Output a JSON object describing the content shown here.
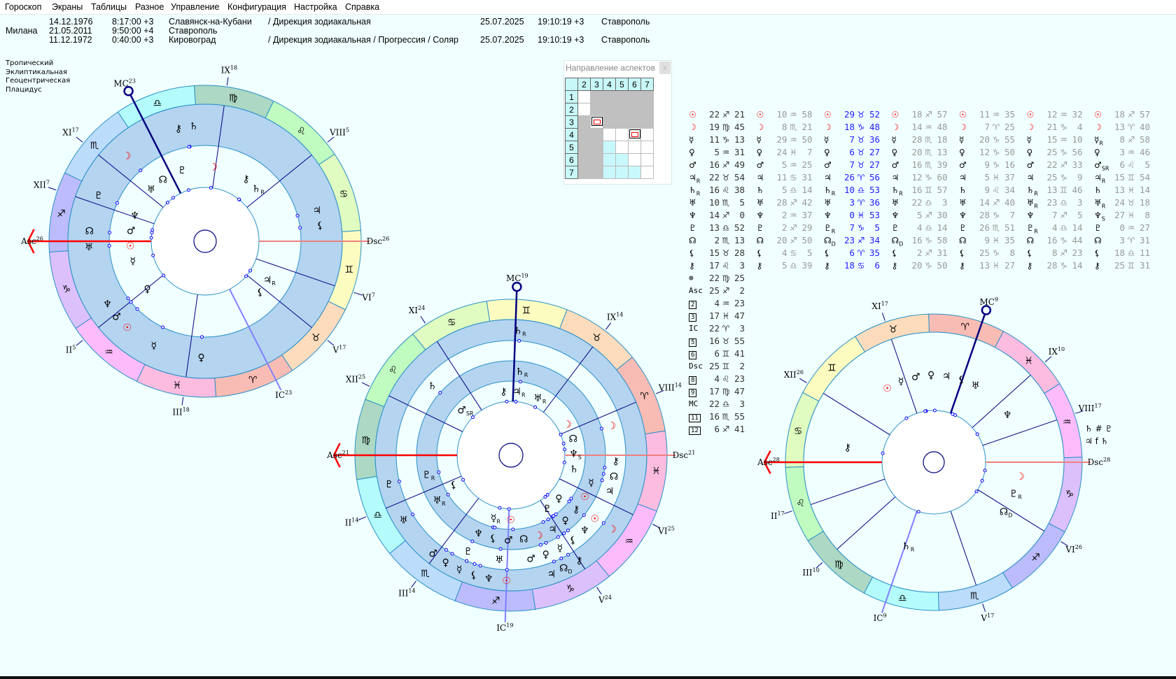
{
  "menu": [
    "Гороскоп",
    "Экраны",
    "Таблицы",
    "Разное",
    "Управление",
    "Конфигурация",
    "Настройка",
    "Справка"
  ],
  "header": {
    "name": "Милана",
    "rows": [
      {
        "date": "14.12.1976",
        "time": "8:17:00 +3",
        "place": "Славянск-на-Кубани",
        "method": "/ Дирекция зодиакальная",
        "ref_date": "25.07.2025",
        "ref_time": "19:10:19 +3",
        "ref_place": "Ставрополь"
      },
      {
        "date": "21.05.2011",
        "time": "9:50:00 +4",
        "place": "Ставрополь",
        "method": "",
        "ref_date": "",
        "ref_time": "",
        "ref_place": ""
      },
      {
        "date": "11.12.1972",
        "time": "0:40:00 +3",
        "place": "Кировоград",
        "method": "/ Дирекция зодиакальная / Прогрессия / Соляр",
        "ref_date": "25.07.2025",
        "ref_time": "19:10:19 +3",
        "ref_place": "Ставрополь"
      }
    ]
  },
  "settings": [
    "Тропический",
    "Эклиптикальная",
    "Геоцентрическая",
    "Плацидус"
  ],
  "aspect_panel": {
    "title": "Направление аспектов",
    "close": "x",
    "cols": [
      "2",
      "3",
      "4",
      "5",
      "6",
      "7"
    ],
    "rows": [
      "1",
      "2",
      "3",
      "4",
      "5",
      "6",
      "7"
    ],
    "cells": [
      [
        "w",
        "g",
        "g",
        "g",
        "g",
        "g"
      ],
      [
        "w",
        "g",
        "g",
        "g",
        "g",
        "g"
      ],
      [
        "g",
        "i",
        "g",
        "g",
        "g",
        "g"
      ],
      [
        "g",
        "g",
        "w",
        "w",
        "i",
        "w"
      ],
      [
        "g",
        "g",
        "c",
        "w",
        "w",
        "w"
      ],
      [
        "g",
        "g",
        "c",
        "c",
        "w",
        "w"
      ],
      [
        "g",
        "g",
        "c",
        "c",
        "c",
        "w"
      ]
    ]
  },
  "colors": {
    "signs": [
      "#f9bcb4",
      "#fcdcbc",
      "#fcfcc0",
      "#e0fcc0",
      "#c0fcc0",
      "#acd8c4",
      "#b4fcfc",
      "#bcdcfc",
      "#bcbcfc",
      "#dcc0fc",
      "#fcbcfc",
      "#fcbce0"
    ],
    "table_value": [
      "#333333",
      "#999999",
      "#2020ff",
      "#999999",
      "#999999",
      "#999999",
      "#999999"
    ],
    "luminary": "#ff0000",
    "band": "#b4d4f0",
    "asc": "#ff0000",
    "mc": "#000080"
  },
  "signs": [
    "♈",
    "♉",
    "♊",
    "♋",
    "♌",
    "♍",
    "♎",
    "♏",
    "♐",
    "♑",
    "♒",
    "♓"
  ],
  "table": {
    "columns": [
      [
        [
          "☉",
          "",
          "22",
          "♐",
          "21"
        ],
        [
          "☽",
          "",
          "19",
          "♍",
          "45"
        ],
        [
          "☿",
          "",
          "11",
          "♑",
          "13"
        ],
        [
          "♀",
          "",
          "5",
          "♒",
          "31"
        ],
        [
          "♂",
          "",
          "16",
          "♐",
          "49"
        ],
        [
          "♃",
          "R",
          "22",
          "♉",
          "54"
        ],
        [
          "♄",
          "R",
          "16",
          "♌",
          "38"
        ],
        [
          "♅",
          "",
          "10",
          "♏",
          "5"
        ],
        [
          "♆",
          "",
          "14",
          "♐",
          "0"
        ],
        [
          "♇",
          "",
          "13",
          "♎",
          "52"
        ],
        [
          "☊",
          "",
          "2",
          "♏",
          "13"
        ],
        [
          "⚸",
          "",
          "15",
          "♉",
          "28"
        ],
        [
          "⚷",
          "",
          "17",
          "♌",
          "3"
        ]
      ],
      [
        [
          "☉",
          "",
          "10",
          "♒",
          "58"
        ],
        [
          "☽",
          "",
          "8",
          "♏",
          "21"
        ],
        [
          "☿",
          "",
          "29",
          "♒",
          "50"
        ],
        [
          "♀",
          "",
          "24",
          "♓",
          "7"
        ],
        [
          "♂",
          "",
          "5",
          "♒",
          "25"
        ],
        [
          "♃",
          "",
          "11",
          "♋",
          "31"
        ],
        [
          "♄",
          "",
          "5",
          "♎",
          "14"
        ],
        [
          "♅",
          "",
          "28",
          "♐",
          "42"
        ],
        [
          "♆",
          "",
          "2",
          "♒",
          "37"
        ],
        [
          "♇",
          "",
          "2",
          "♐",
          "29"
        ],
        [
          "☊",
          "",
          "20",
          "♐",
          "50"
        ],
        [
          "⚸",
          "",
          "4",
          "♋",
          "5"
        ],
        [
          "⚷",
          "",
          "5",
          "♎",
          "39"
        ]
      ],
      [
        [
          "☉",
          "",
          "29",
          "♉",
          "52"
        ],
        [
          "☽",
          "",
          "18",
          "♑",
          "48"
        ],
        [
          "☿",
          "",
          "7",
          "♉",
          "36"
        ],
        [
          "♀",
          "",
          "6",
          "♉",
          "27"
        ],
        [
          "♂",
          "",
          "7",
          "♉",
          "27"
        ],
        [
          "♃",
          "",
          "26",
          "♈",
          "56"
        ],
        [
          "♄",
          "R",
          "10",
          "♎",
          "53"
        ],
        [
          "♅",
          "",
          "3",
          "♈",
          "36"
        ],
        [
          "♆",
          "",
          "0",
          "♓",
          "53"
        ],
        [
          "♇",
          "R",
          "7",
          "♑",
          "5"
        ],
        [
          "☊",
          "D",
          "23",
          "♐",
          "34"
        ],
        [
          "⚸",
          "",
          "6",
          "♈",
          "35"
        ],
        [
          "⚷",
          "",
          "18",
          "♋",
          "6"
        ]
      ],
      [
        [
          "☉",
          "",
          "18",
          "♐",
          "57"
        ],
        [
          "☽",
          "",
          "14",
          "♒",
          "48"
        ],
        [
          "☿",
          "",
          "28",
          "♏",
          "18"
        ],
        [
          "♀",
          "",
          "20",
          "♏",
          "13"
        ],
        [
          "♂",
          "",
          "16",
          "♏",
          "39"
        ],
        [
          "♃",
          "",
          "12",
          "♑",
          "60"
        ],
        [
          "♄",
          "R",
          "16",
          "♊",
          "57"
        ],
        [
          "♅",
          "",
          "22",
          "♎",
          "3"
        ],
        [
          "♆",
          "",
          "5",
          "♐",
          "30"
        ],
        [
          "♇",
          "",
          "4",
          "♎",
          "14"
        ],
        [
          "☊",
          "D",
          "16",
          "♑",
          "58"
        ],
        [
          "⚸",
          "",
          "2",
          "♐",
          "31"
        ],
        [
          "⚷",
          "",
          "20",
          "♑",
          "50"
        ]
      ],
      [
        [
          "☉",
          "",
          "11",
          "♒",
          "35"
        ],
        [
          "☽",
          "",
          "7",
          "♈",
          "25"
        ],
        [
          "☿",
          "",
          "20",
          "♑",
          "55"
        ],
        [
          "♀",
          "",
          "12",
          "♑",
          "50"
        ],
        [
          "♂",
          "",
          "9",
          "♑",
          "16"
        ],
        [
          "♃",
          "",
          "5",
          "♓",
          "37"
        ],
        [
          "♄",
          "",
          "9",
          "♌",
          "34"
        ],
        [
          "♅",
          "",
          "14",
          "♐",
          "40"
        ],
        [
          "♆",
          "",
          "28",
          "♑",
          "7"
        ],
        [
          "♇",
          "",
          "26",
          "♏",
          "51"
        ],
        [
          "☊",
          "",
          "9",
          "♓",
          "35"
        ],
        [
          "⚸",
          "",
          "25",
          "♑",
          "8"
        ],
        [
          "⚷",
          "",
          "13",
          "♓",
          "27"
        ]
      ],
      [
        [
          "☉",
          "",
          "12",
          "♒",
          "32"
        ],
        [
          "☽",
          "",
          "21",
          "♑",
          "4"
        ],
        [
          "☿",
          "",
          "15",
          "♒",
          "10"
        ],
        [
          "♀",
          "",
          "25",
          "♑",
          "56"
        ],
        [
          "♂",
          "",
          "22",
          "♐",
          "33"
        ],
        [
          "♃",
          "",
          "25",
          "♑",
          "9"
        ],
        [
          "♄",
          "R",
          "13",
          "♊",
          "46"
        ],
        [
          "♅",
          "R",
          "23",
          "♎",
          "3"
        ],
        [
          "♆",
          "",
          "7",
          "♐",
          "5"
        ],
        [
          "♇",
          "R",
          "4",
          "♎",
          "14"
        ],
        [
          "☊",
          "",
          "16",
          "♑",
          "44"
        ],
        [
          "⚸",
          "",
          "8",
          "♐",
          "23"
        ],
        [
          "⚷",
          "",
          "28",
          "♑",
          "14"
        ]
      ],
      [
        [
          "☉",
          "",
          "18",
          "♐",
          "57"
        ],
        [
          "☽",
          "",
          "13",
          "♈",
          "40"
        ],
        [
          "☿",
          "R",
          "8",
          "♐",
          "58"
        ],
        [
          "♀",
          "",
          "3",
          "♒",
          "46"
        ],
        [
          "♂",
          "SR",
          "6",
          "♌",
          "5"
        ],
        [
          "♃",
          "R",
          "15",
          "♊",
          "54"
        ],
        [
          "♄",
          "",
          "13",
          "♓",
          "14"
        ],
        [
          "♅",
          "R",
          "24",
          "♉",
          "18"
        ],
        [
          "♆",
          "S",
          "27",
          "♓",
          "8"
        ],
        [
          "♇",
          "",
          "0",
          "♒",
          "27"
        ],
        [
          "☊",
          "",
          "3",
          "♈",
          "31"
        ],
        [
          "⚸",
          "",
          "18",
          "♎",
          "11"
        ],
        [
          "⚷",
          "",
          "25",
          "♊",
          "31"
        ]
      ]
    ],
    "houses": [
      [
        "⊗",
        "",
        "22",
        "♍",
        "25"
      ],
      [
        "Asc",
        "",
        "25",
        "♐",
        "2"
      ],
      [
        "2",
        "box",
        "4",
        "♒",
        "23"
      ],
      [
        "3",
        "box",
        "17",
        "♓",
        "47"
      ],
      [
        "IC",
        "",
        "22",
        "♈",
        "3"
      ],
      [
        "5",
        "box",
        "16",
        "♉",
        "55"
      ],
      [
        "6",
        "box",
        "6",
        "♊",
        "41"
      ],
      [
        "Dsc",
        "",
        "25",
        "♊",
        "2"
      ],
      [
        "8",
        "box",
        "4",
        "♌",
        "23"
      ],
      [
        "9",
        "box",
        "17",
        "♍",
        "47"
      ],
      [
        "MC",
        "",
        "22",
        "♎",
        "3"
      ],
      [
        "11",
        "box",
        "16",
        "♏",
        "55"
      ],
      [
        "12",
        "box",
        "6",
        "♐",
        "41"
      ]
    ]
  },
  "charts": [
    {
      "rings": [
        1,
        0
      ],
      "cusps": [
        [
          "Asc",
          "26",
          "♐"
        ],
        [
          "II",
          "5",
          "♒"
        ],
        [
          "III",
          "18",
          "♓"
        ],
        [
          "IC",
          "23",
          "♈"
        ],
        [
          "V",
          "17",
          "♉"
        ],
        [
          "VI",
          "7",
          "♊"
        ],
        [
          "Dsc",
          "26",
          "♊"
        ],
        [
          "VIII",
          "5",
          "♌"
        ],
        [
          "IX",
          "18",
          "♍"
        ],
        [
          "MC",
          "23",
          "♎"
        ],
        [
          "XI",
          "17",
          "♏"
        ],
        [
          "XII",
          "7",
          "♐"
        ]
      ]
    },
    {
      "rings": [
        3,
        4,
        5,
        6
      ],
      "cusps": [
        [
          "Asc",
          "21",
          "♍"
        ],
        [
          "II",
          "14",
          "♎"
        ],
        [
          "III",
          "14",
          "♏"
        ],
        [
          "IC",
          "19",
          "♐"
        ],
        [
          "V",
          "24",
          "♑"
        ],
        [
          "VI",
          "25",
          "♒"
        ],
        [
          "Dsc",
          "21",
          "♓"
        ],
        [
          "VIII",
          "14",
          "♈"
        ],
        [
          "IX",
          "14",
          "♉"
        ],
        [
          "MC",
          "19",
          "♊"
        ],
        [
          "XI",
          "24",
          "♋"
        ],
        [
          "XII",
          "25",
          "♌"
        ]
      ]
    },
    {
      "rings": [
        2
      ],
      "cusps": [
        [
          "Asc",
          "28",
          "♋"
        ],
        [
          "II",
          "17",
          "♌"
        ],
        [
          "III",
          "10",
          "♍"
        ],
        [
          "IC",
          "9",
          "♎"
        ],
        [
          "V",
          "17",
          "♏"
        ],
        [
          "VI",
          "26",
          "♐"
        ],
        [
          "Dsc",
          "28",
          "♑"
        ],
        [
          "VIII",
          "17",
          "♒"
        ],
        [
          "IX",
          "10",
          "♓"
        ],
        [
          "MC",
          "9",
          "♈"
        ],
        [
          "XI",
          "17",
          "♉"
        ],
        [
          "XII",
          "26",
          "♊"
        ]
      ],
      "side_notes": [
        "♄ # ♇",
        "♃ f ♄"
      ]
    }
  ]
}
